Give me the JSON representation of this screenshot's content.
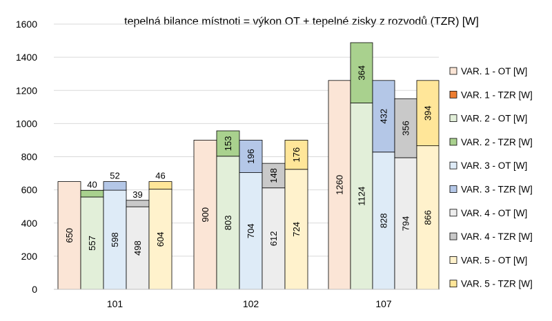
{
  "chart_data": {
    "type": "bar",
    "stacked_groups": true,
    "title": "tepelná bilance místnoti = výkon OT + tepelné zisky z rozvodů (TZR) [W]",
    "xlabel": "",
    "ylabel": "",
    "ylim": [
      0,
      1600
    ],
    "yticks": [
      0,
      200,
      400,
      600,
      800,
      1000,
      1200,
      1400,
      1600
    ],
    "categories": [
      "101",
      "102",
      "107"
    ],
    "legend_position": "right",
    "series": [
      {
        "name": "VAR. 1 - OT [W]",
        "stack": "VAR. 1",
        "part": "OT",
        "values": [
          650,
          900,
          1260
        ],
        "fill": "#FBE5D6",
        "edge": "#000000"
      },
      {
        "name": "VAR. 1 - TZR [W]",
        "stack": "VAR. 1",
        "part": "TZR",
        "values": [
          0,
          0,
          0
        ],
        "fill": "#ED7D31",
        "edge": "#000000"
      },
      {
        "name": "VAR. 2 - OT [W]",
        "stack": "VAR. 2",
        "part": "OT",
        "values": [
          557,
          803,
          1124
        ],
        "fill": "#E2EFD9",
        "edge": "#000000"
      },
      {
        "name": "VAR. 2 - TZR [W]",
        "stack": "VAR. 2",
        "part": "TZR",
        "values": [
          40,
          153,
          364
        ],
        "fill": "#A9D18E",
        "edge": "#000000"
      },
      {
        "name": "VAR. 3 - OT [W]",
        "stack": "VAR. 3",
        "part": "OT",
        "values": [
          598,
          704,
          828
        ],
        "fill": "#DEEBF7",
        "edge": "#000000"
      },
      {
        "name": "VAR. 3 - TZR [W]",
        "stack": "VAR. 3",
        "part": "TZR",
        "values": [
          52,
          196,
          432
        ],
        "fill": "#B4C7E7",
        "edge": "#000000"
      },
      {
        "name": "VAR. 4 - OT [W]",
        "stack": "VAR. 4",
        "part": "OT",
        "values": [
          498,
          612,
          794
        ],
        "fill": "#EDEDED",
        "edge": "#000000"
      },
      {
        "name": "VAR. 4 - TZR [W]",
        "stack": "VAR. 4",
        "part": "TZR",
        "values": [
          39,
          148,
          356
        ],
        "fill": "#C9C9C9",
        "edge": "#000000"
      },
      {
        "name": "VAR. 5 - OT [W]",
        "stack": "VAR. 5",
        "part": "OT",
        "values": [
          604,
          724,
          866
        ],
        "fill": "#FFF2CC",
        "edge": "#000000"
      },
      {
        "name": "VAR. 5 - TZR [W]",
        "stack": "VAR. 5",
        "part": "TZR",
        "values": [
          46,
          176,
          394
        ],
        "fill": "#FFE699",
        "edge": "#000000"
      }
    ],
    "data_labels": {
      "OT": "rotated inside bar",
      "TZR": "above bar when small, rotated inside otherwise"
    }
  }
}
